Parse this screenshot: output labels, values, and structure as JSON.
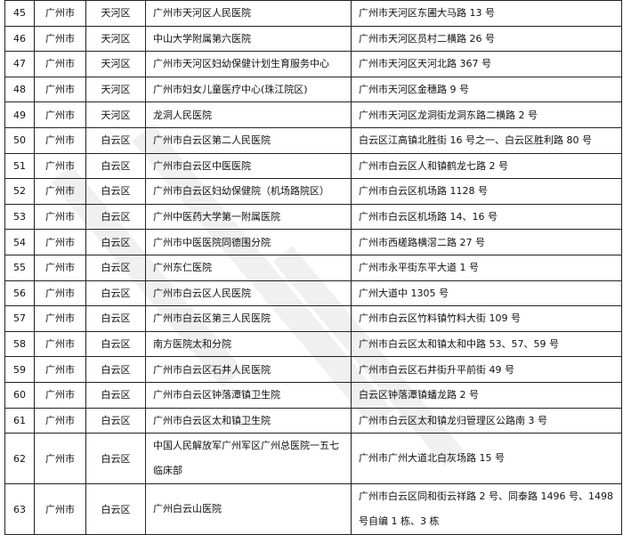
{
  "rows": [
    {
      "no": "45",
      "city": "广州市",
      "district": "天河区",
      "name": "广州市天河区人民医院",
      "address": "广州市天河区东圃大马路 13 号"
    },
    {
      "no": "46",
      "city": "广州市",
      "district": "天河区",
      "name": "中山大学附属第六医院",
      "address": "广州市天河区员村二横路 26 号"
    },
    {
      "no": "47",
      "city": "广州市",
      "district": "天河区",
      "name": "广州市天河区妇幼保健计划生育服务中心",
      "address": "广州市天河区天河北路 367 号"
    },
    {
      "no": "48",
      "city": "广州市",
      "district": "天河区",
      "name": "广州市妇女儿童医疗中心(珠江院区)",
      "address": "广州市天河区金穗路 9 号"
    },
    {
      "no": "49",
      "city": "广州市",
      "district": "天河区",
      "name": "龙洞人民医院",
      "address": "广州市天河区龙洞街龙洞东路二横路 2 号"
    },
    {
      "no": "50",
      "city": "广州市",
      "district": "白云区",
      "name": "广州市白云区第二人民医院",
      "address": "白云区江高镇北胜街 16 号之一、白云区胜利路 80 号"
    },
    {
      "no": "51",
      "city": "广州市",
      "district": "白云区",
      "name": "广州市白云区中医医院",
      "address": "广州市白云区人和镇鹤龙七路 2 号"
    },
    {
      "no": "52",
      "city": "广州市",
      "district": "白云区",
      "name": "广州市白云区妇幼保健院（机场路院区）",
      "address": "广州市白云区机场路 1128 号"
    },
    {
      "no": "53",
      "city": "广州市",
      "district": "白云区",
      "name": "广州中医药大学第一附属医院",
      "address": "广州市白云区机场路 14、16 号"
    },
    {
      "no": "54",
      "city": "广州市",
      "district": "白云区",
      "name": "广州市中医医院同德围分院",
      "address": "广州市西槎路横滘二路 27 号"
    },
    {
      "no": "55",
      "city": "广州市",
      "district": "白云区",
      "name": "广州东仁医院",
      "address": "广州市永平街东平大道 1 号"
    },
    {
      "no": "56",
      "city": "广州市",
      "district": "白云区",
      "name": "广州市白云区人民医院",
      "address": "广州大道中 1305 号"
    },
    {
      "no": "57",
      "city": "广州市",
      "district": "白云区",
      "name": "广州市白云区第三人民医院",
      "address": "广州市白云区竹料镇竹料大街 109 号"
    },
    {
      "no": "58",
      "city": "广州市",
      "district": "白云区",
      "name": "南方医院太和分院",
      "address": "广州市白云区太和镇太和中路 53、57、59 号"
    },
    {
      "no": "59",
      "city": "广州市",
      "district": "白云区",
      "name": "广州市白云区石井人民医院",
      "address": "广州市白云区石井街升平前街 49 号"
    },
    {
      "no": "60",
      "city": "广州市",
      "district": "白云区",
      "name": "广州市白云区钟落潭镇卫生院",
      "address": "白云区钟落潭镇蟠龙路 2 号"
    },
    {
      "no": "61",
      "city": "广州市",
      "district": "白云区",
      "name": "广州市白云区太和镇卫生院",
      "address": "广州市白云区太和镇龙归管理区公路南 3 号"
    },
    {
      "no": "62",
      "city": "广州市",
      "district": "白云区",
      "name": "中国人民解放军广州军区广州总医院一五七临床部",
      "address": "广州市广州大道北白灰场路 15 号"
    },
    {
      "no": "63",
      "city": "广州市",
      "district": "白云区",
      "name": "广州白云山医院",
      "address": "广州市白云区同和街云祥路 2 号、同泰路 1496 号、1498 号自编 1 栋、3 栋"
    }
  ]
}
